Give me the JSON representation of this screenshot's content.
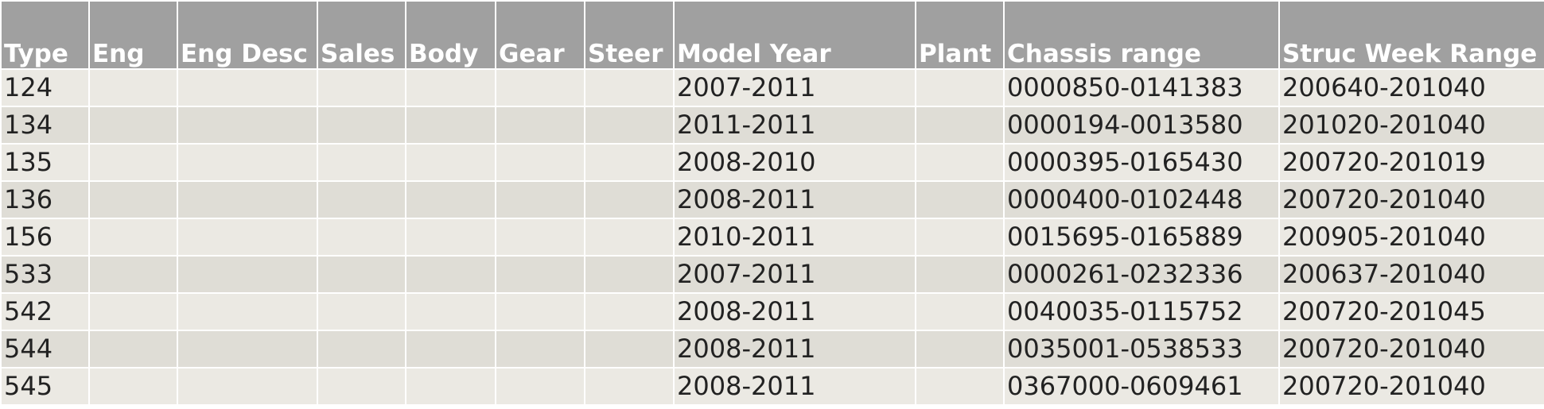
{
  "table": {
    "headers": [
      "Type",
      "Eng",
      "Eng Desc",
      "Sales",
      "Body",
      "Gear",
      "Steer",
      "Model Year",
      "Plant",
      "Chassis range",
      "Struc Week Range"
    ],
    "rows": [
      {
        "type": "124",
        "model_year": "2007-2011",
        "chassis_range": "0000850-0141383",
        "struc_week_range": "200640-201040"
      },
      {
        "type": "134",
        "model_year": "2011-2011",
        "chassis_range": "0000194-0013580",
        "struc_week_range": "201020-201040"
      },
      {
        "type": "135",
        "model_year": "2008-2010",
        "chassis_range": "0000395-0165430",
        "struc_week_range": "200720-201019"
      },
      {
        "type": "136",
        "model_year": "2008-2011",
        "chassis_range": "0000400-0102448",
        "struc_week_range": "200720-201040"
      },
      {
        "type": "156",
        "model_year": "2010-2011",
        "chassis_range": "0015695-0165889",
        "struc_week_range": "200905-201040"
      },
      {
        "type": "533",
        "model_year": "2007-2011",
        "chassis_range": "0000261-0232336",
        "struc_week_range": "200637-201040"
      },
      {
        "type": "542",
        "model_year": "2008-2011",
        "chassis_range": "0040035-0115752",
        "struc_week_range": "200720-201045"
      },
      {
        "type": "544",
        "model_year": "2008-2011",
        "chassis_range": "0035001-0538533",
        "struc_week_range": "200720-201040"
      },
      {
        "type": "545",
        "model_year": "2008-2011",
        "chassis_range": "0367000-0609461",
        "struc_week_range": "200720-201040"
      }
    ]
  }
}
